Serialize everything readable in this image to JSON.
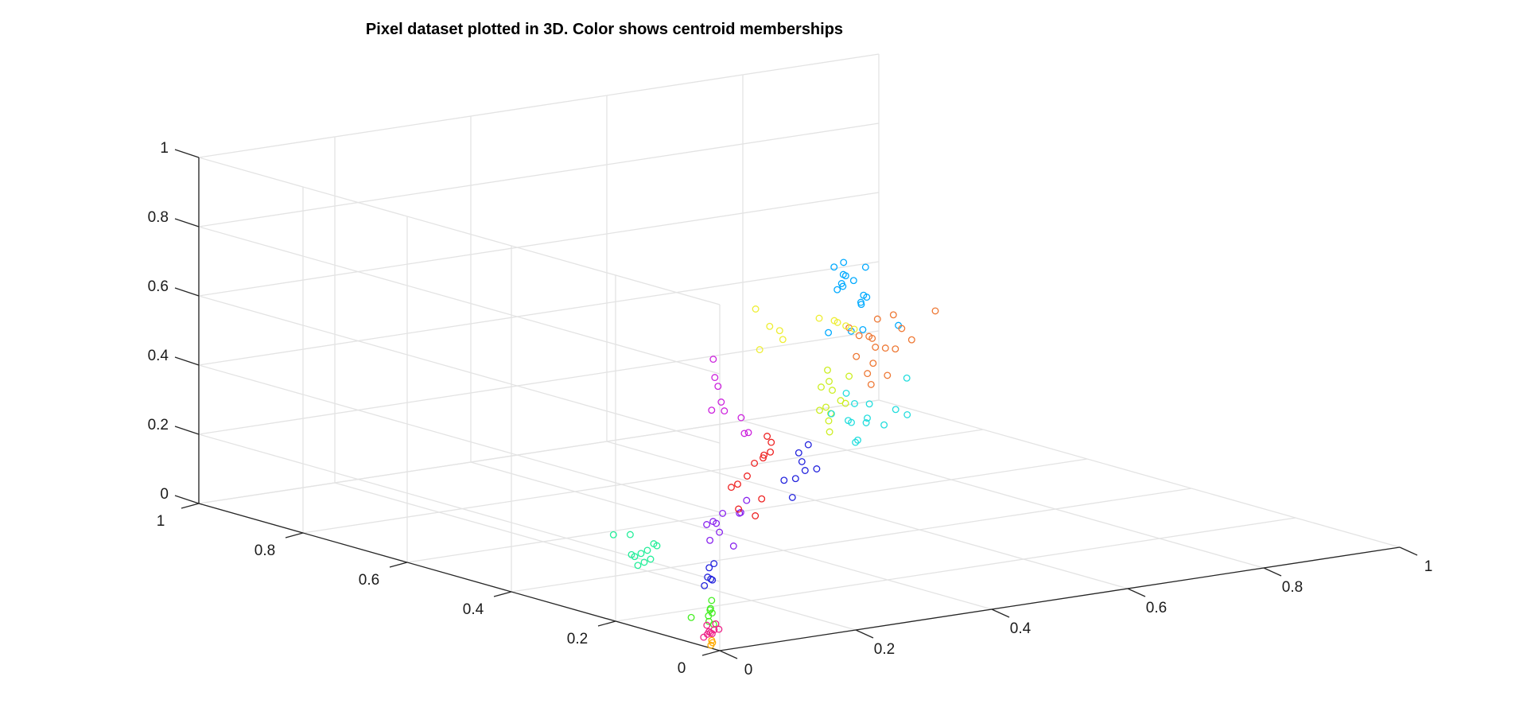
{
  "chart_data": {
    "type": "scatter",
    "title": "Pixel dataset plotted in 3D. Color shows centroid memberships",
    "xlabel": "",
    "ylabel": "",
    "zlabel": "",
    "xlim": [
      0,
      1
    ],
    "ylim": [
      0,
      1
    ],
    "zlim": [
      0,
      1
    ],
    "x_ticks": [
      "0",
      "0.2",
      "0.4",
      "0.6",
      "0.8",
      "1"
    ],
    "y_ticks": [
      "0",
      "0.2",
      "0.4",
      "0.6",
      "0.8",
      "1"
    ],
    "z_ticks": [
      "0",
      "0.2",
      "0.4",
      "0.6",
      "0.8",
      "1"
    ],
    "grid": true,
    "marker": "open-circle",
    "series": [
      {
        "color": "#00aaff",
        "values": [
          [
            0.26,
            0.12,
            0.98
          ],
          [
            0.3,
            0.15,
            0.93
          ],
          [
            0.32,
            0.18,
            0.95
          ],
          [
            0.28,
            0.14,
            0.9
          ],
          [
            0.35,
            0.2,
            0.88
          ],
          [
            0.3,
            0.12,
            0.86
          ],
          [
            0.33,
            0.16,
            0.84
          ],
          [
            0.38,
            0.22,
            0.82
          ],
          [
            0.27,
            0.1,
            0.8
          ],
          [
            0.31,
            0.13,
            0.78
          ],
          [
            0.36,
            0.19,
            0.92
          ],
          [
            0.29,
            0.17,
            0.76
          ],
          [
            0.25,
            0.09,
            0.94
          ],
          [
            0.34,
            0.21,
            0.87
          ],
          [
            0.22,
            0.05,
            1.0
          ],
          [
            0.4,
            0.24,
            0.8
          ],
          [
            0.37,
            0.14,
            0.77
          ]
        ]
      },
      {
        "color": "#ee7733",
        "values": [
          [
            0.42,
            0.3,
            0.68
          ],
          [
            0.45,
            0.32,
            0.64
          ],
          [
            0.48,
            0.34,
            0.62
          ],
          [
            0.5,
            0.36,
            0.6
          ],
          [
            0.44,
            0.28,
            0.58
          ],
          [
            0.52,
            0.38,
            0.56
          ],
          [
            0.55,
            0.4,
            0.54
          ],
          [
            0.47,
            0.33,
            0.52
          ],
          [
            0.6,
            0.45,
            0.6
          ],
          [
            0.58,
            0.42,
            0.52
          ],
          [
            0.65,
            0.48,
            0.5
          ],
          [
            0.62,
            0.46,
            0.55
          ],
          [
            0.5,
            0.35,
            0.66
          ],
          [
            0.4,
            0.26,
            0.62
          ],
          [
            0.7,
            0.5,
            0.56
          ],
          [
            0.53,
            0.37,
            0.48
          ],
          [
            0.46,
            0.31,
            0.5
          ]
        ]
      },
      {
        "color": "#ccee22",
        "values": [
          [
            0.36,
            0.26,
            0.56
          ],
          [
            0.38,
            0.28,
            0.52
          ],
          [
            0.34,
            0.24,
            0.5
          ],
          [
            0.4,
            0.29,
            0.48
          ],
          [
            0.42,
            0.3,
            0.54
          ],
          [
            0.37,
            0.27,
            0.46
          ],
          [
            0.33,
            0.22,
            0.44
          ],
          [
            0.39,
            0.3,
            0.42
          ],
          [
            0.35,
            0.25,
            0.6
          ],
          [
            0.31,
            0.21,
            0.58
          ],
          [
            0.43,
            0.32,
            0.45
          ],
          [
            0.3,
            0.2,
            0.52
          ]
        ]
      },
      {
        "color": "#eeee33",
        "values": [
          [
            0.15,
            0.1,
            0.85
          ],
          [
            0.18,
            0.12,
            0.82
          ],
          [
            0.12,
            0.08,
            0.8
          ],
          [
            0.2,
            0.14,
            0.78
          ],
          [
            0.38,
            0.27,
            0.72
          ],
          [
            0.4,
            0.28,
            0.7
          ],
          [
            0.36,
            0.25,
            0.74
          ],
          [
            0.42,
            0.29,
            0.68
          ],
          [
            0.33,
            0.24,
            0.76
          ],
          [
            0.16,
            0.14,
            0.88
          ]
        ]
      },
      {
        "color": "#22dddd",
        "values": [
          [
            0.44,
            0.36,
            0.4
          ],
          [
            0.48,
            0.38,
            0.36
          ],
          [
            0.5,
            0.4,
            0.34
          ],
          [
            0.52,
            0.42,
            0.38
          ],
          [
            0.46,
            0.34,
            0.32
          ],
          [
            0.56,
            0.45,
            0.3
          ],
          [
            0.6,
            0.5,
            0.28
          ],
          [
            0.54,
            0.44,
            0.26
          ],
          [
            0.64,
            0.52,
            0.24
          ],
          [
            0.68,
            0.55,
            0.26
          ],
          [
            0.72,
            0.58,
            0.22
          ],
          [
            0.75,
            0.62,
            0.3
          ],
          [
            0.5,
            0.41,
            0.42
          ],
          [
            0.58,
            0.47,
            0.34
          ]
        ]
      },
      {
        "color": "#2222dd",
        "values": [
          [
            0.3,
            0.24,
            0.38
          ],
          [
            0.32,
            0.26,
            0.34
          ],
          [
            0.28,
            0.22,
            0.32
          ],
          [
            0.34,
            0.28,
            0.3
          ],
          [
            0.26,
            0.2,
            0.28
          ],
          [
            0.36,
            0.3,
            0.36
          ],
          [
            0.38,
            0.31,
            0.28
          ],
          [
            0.24,
            0.19,
            0.34
          ],
          [
            0.12,
            0.18,
            0.1
          ],
          [
            0.14,
            0.2,
            0.08
          ],
          [
            0.1,
            0.16,
            0.09
          ],
          [
            0.16,
            0.22,
            0.11
          ],
          [
            0.13,
            0.19,
            0.12
          ],
          [
            0.15,
            0.21,
            0.07
          ]
        ]
      },
      {
        "color": "#cc22dd",
        "values": [
          [
            0.1,
            0.14,
            0.7
          ],
          [
            0.12,
            0.16,
            0.66
          ],
          [
            0.08,
            0.12,
            0.62
          ],
          [
            0.14,
            0.18,
            0.6
          ],
          [
            0.16,
            0.2,
            0.56
          ],
          [
            0.2,
            0.22,
            0.52
          ],
          [
            0.18,
            0.18,
            0.5
          ],
          [
            0.09,
            0.13,
            0.76
          ],
          [
            0.22,
            0.24,
            0.46
          ]
        ]
      },
      {
        "color": "#8822ee",
        "values": [
          [
            0.22,
            0.3,
            0.18
          ],
          [
            0.24,
            0.32,
            0.16
          ],
          [
            0.2,
            0.28,
            0.14
          ],
          [
            0.26,
            0.34,
            0.12
          ],
          [
            0.28,
            0.36,
            0.16
          ],
          [
            0.3,
            0.34,
            0.2
          ],
          [
            0.18,
            0.26,
            0.2
          ],
          [
            0.25,
            0.3,
            0.1
          ],
          [
            0.32,
            0.38,
            0.14
          ],
          [
            0.23,
            0.26,
            0.22
          ]
        ]
      },
      {
        "color": "#ee2222",
        "values": [
          [
            0.4,
            0.5,
            0.14
          ],
          [
            0.44,
            0.54,
            0.12
          ],
          [
            0.48,
            0.56,
            0.16
          ],
          [
            0.5,
            0.6,
            0.1
          ],
          [
            0.46,
            0.52,
            0.08
          ],
          [
            0.54,
            0.62,
            0.14
          ],
          [
            0.58,
            0.66,
            0.12
          ],
          [
            0.42,
            0.48,
            0.06
          ],
          [
            0.52,
            0.58,
            0.2
          ],
          [
            0.56,
            0.64,
            0.18
          ],
          [
            0.6,
            0.7,
            0.08
          ],
          [
            0.38,
            0.46,
            0.1
          ]
        ]
      },
      {
        "color": "#22ee99",
        "values": [
          [
            0.12,
            0.32,
            0.1
          ],
          [
            0.14,
            0.34,
            0.06
          ],
          [
            0.16,
            0.36,
            0.08
          ],
          [
            0.18,
            0.38,
            0.04
          ],
          [
            0.2,
            0.4,
            0.06
          ],
          [
            0.22,
            0.42,
            0.02
          ],
          [
            0.1,
            0.3,
            0.12
          ],
          [
            0.24,
            0.44,
            0.05
          ],
          [
            0.26,
            0.46,
            0.03
          ],
          [
            0.15,
            0.4,
            0.12
          ],
          [
            0.19,
            0.42,
            0.1
          ]
        ]
      },
      {
        "color": "#44ee22",
        "values": [
          [
            0.05,
            0.08,
            0.06
          ],
          [
            0.06,
            0.1,
            0.04
          ],
          [
            0.04,
            0.07,
            0.08
          ],
          [
            0.07,
            0.11,
            0.05
          ],
          [
            0.05,
            0.12,
            0.03
          ],
          [
            0.06,
            0.09,
            0.02
          ],
          [
            0.08,
            0.12,
            0.07
          ],
          [
            0.03,
            0.06,
            0.05
          ]
        ]
      },
      {
        "color": "#ee2288",
        "values": [
          [
            0.03,
            0.06,
            0.02
          ],
          [
            0.04,
            0.07,
            0.01
          ],
          [
            0.05,
            0.08,
            0.0
          ],
          [
            0.03,
            0.05,
            0.03
          ],
          [
            0.04,
            0.06,
            0.04
          ],
          [
            0.02,
            0.05,
            0.02
          ],
          [
            0.05,
            0.09,
            0.02
          ],
          [
            0.06,
            0.08,
            0.01
          ],
          [
            0.03,
            0.07,
            0.0
          ]
        ]
      },
      {
        "color": "#ffaa00",
        "values": [
          [
            0.01,
            0.03,
            0.0
          ],
          [
            0.02,
            0.04,
            0.0
          ],
          [
            0.015,
            0.035,
            0.01
          ]
        ]
      }
    ]
  }
}
